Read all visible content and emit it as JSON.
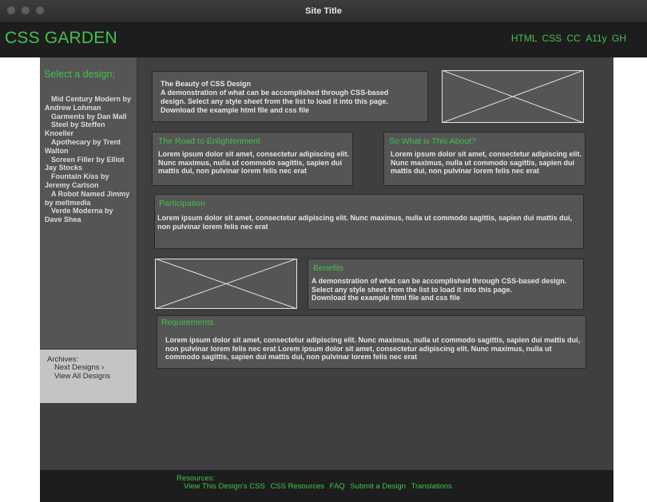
{
  "window": {
    "title": "Site Title"
  },
  "header": {
    "brand": "CSS GARDEN",
    "nav": [
      "HTML",
      "CSS",
      "CC",
      "A11y",
      "GH"
    ]
  },
  "sidebar": {
    "heading": "Select a design;",
    "designs": [
      "Mid Century Modern by Andrew Lohman",
      "Garments by Dan Mall",
      "Steel by Steffen Knoeller",
      "Apothecary by Trent Walton",
      "Screen Filler by Elliot Jay Stocks",
      "Fountain Kiss by Jeremy Carlson",
      "A Robot Named Jimmy by meltmedia",
      "Verde Moderna by Dave Shea"
    ],
    "archives": {
      "label": "Archives:",
      "next": "Next Designs ›",
      "all": "View All Designs"
    }
  },
  "intro": {
    "title": "The Beauty of CSS Design",
    "text": "A demonstration of what can be accomplished through CSS-based design. Select any style sheet from the list to load it into this page.",
    "download": "Download the example html file and css file"
  },
  "road": {
    "title": "The Road to Enlightenment",
    "text": "Lorem ipsum dolor sit amet, consectetur adipiscing elit. Nunc maximus, nulla ut commodo sagittis, sapien dui mattis dui, non pulvinar lorem felis nec erat"
  },
  "about": {
    "title": "So What is This About?",
    "text": "Lorem ipsum dolor sit amet, consectetur adipiscing elit. Nunc maximus, nulla ut commodo sagittis, sapien dui mattis dui, non pulvinar lorem felis nec erat"
  },
  "participation": {
    "title": "Participation",
    "text": "Lorem ipsum dolor sit amet, consectetur adipiscing elit. Nunc maximus, nulla ut commodo sagittis, sapien dui mattis dui, non pulvinar lorem felis nec erat"
  },
  "benefits": {
    "title": "Benefits",
    "text": "A demonstration of what can be accomplished through CSS-based design. Select any style sheet from the list to load it into this page.",
    "download": "Download the example html file and css file"
  },
  "requirements": {
    "title": "Requirements",
    "text": "Lorem ipsum dolor sit amet, consectetur adipiscing elit. Nunc maximus, nulla ut commodo sagittis, sapien dui mattis dui, non pulvinar lorem felis nec erat Lorem ipsum dolor sit amet, consectetur adipiscing elit. Nunc maximus, nulla ut commodo sagittis, sapien dui mattis dui, non pulvinar lorem felis nec erat"
  },
  "footer": {
    "resources_label": "Resources:",
    "links": [
      "View This Design's CSS",
      "CSS Resources",
      "FAQ",
      "Submit a Design",
      "Translations"
    ]
  },
  "colors": {
    "accent": "#43c152",
    "page_bg": "#3f3f3f",
    "panel_bg": "#555555",
    "header_bg": "#1d1d1d",
    "archives_bg": "#c4c4c4"
  }
}
